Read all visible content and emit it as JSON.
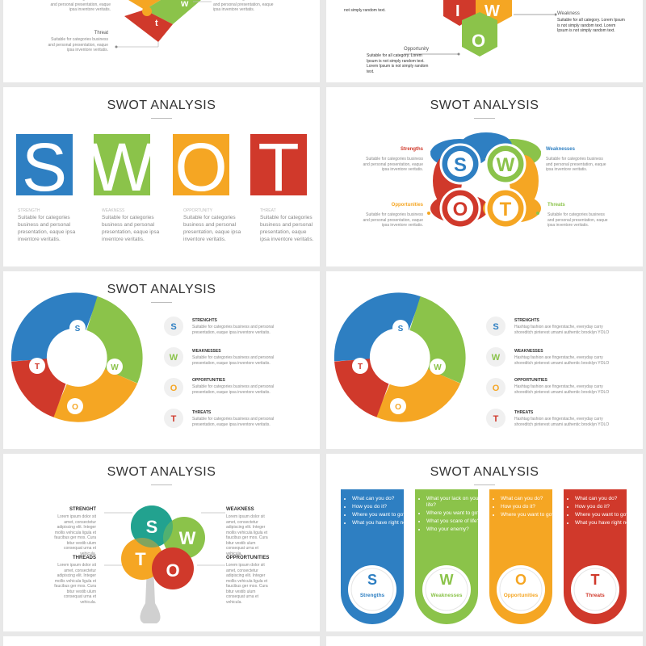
{
  "colors": {
    "s": "#2e7fc2",
    "w": "#8bc34a",
    "o": "#f5a623",
    "t": "#d0392b"
  },
  "title": "SWOT ANALYSIS",
  "top_left": {
    "strength_text": "Suitable for categories business and personal presentation, eaque ipsa inventore veritatis.",
    "weakness_text": "Suitable for categories business and personal presentation, eaque ipsa inventore veritatis.",
    "threat_label": "Threat",
    "threat_text": "Suitable for categories business and personal presentation, eaque ipsa inventore veritatis.",
    "letter_w": "w",
    "letter_t": "t"
  },
  "top_right": {
    "text1": "not simply random text.",
    "weakness_label": "Weakness",
    "weakness_text": "Suitable for all category. Lorem Ipsum is not simply random text. Lorem Ipsum is not simply random text.",
    "opportunity_label": "Opportunity",
    "opportunity_text": "Suitable for all category. Lorem Ipsum is not simply random text. Lorem Ipsum is not simply random text.",
    "letter_i": "I",
    "letter_w": "W",
    "letter_o": "O"
  },
  "blocks": {
    "letters": [
      "S",
      "W",
      "O",
      "T"
    ],
    "labels": [
      "STRENGTH",
      "WEAKNESS",
      "OPPORTUNITY",
      "THREAT"
    ],
    "text": "Suitable for categories business and personal presentation, eaque ipsa inventore veritatis."
  },
  "flower": {
    "labels": [
      "Strengths",
      "Weaknesses",
      "Opportunities",
      "Threats"
    ],
    "text": "Suitable for categories business and personal presentation, eaque ipsa inventore veritatis.",
    "letters": [
      "S",
      "W",
      "O",
      "T"
    ]
  },
  "ring_a": {
    "labels": [
      "STRENGHTS",
      "WEAKNESSES",
      "OPPORTUNITIES",
      "THREATS"
    ],
    "text": "Suitable for categories business and personal presentation, eaque ipsa inventore veritatis.",
    "letters": [
      "S",
      "W",
      "O",
      "T"
    ]
  },
  "ring_b": {
    "labels": [
      "STRENGHTS",
      "WEAKNESSES",
      "OPPORTUNITIES",
      "THREATS"
    ],
    "text": "Hashtag fashion axe fingerstache, everyday carry shoreditch pinterest umami authentic brooklyn YOLO",
    "letters": [
      "S",
      "W",
      "O",
      "T"
    ]
  },
  "tree": {
    "labels": [
      "STRENGHT",
      "WEAKNESS",
      "THREADS",
      "OPPRORTUNITIES"
    ],
    "text": "Lorem ipsum dolor sit amet, consectetur adipiscing elit. Integer mollis vehicula ligula et faucibus ger mos. Cura bitur vestib ulum consequat urna et vehicula.",
    "letters": [
      "S",
      "W",
      "T",
      "O"
    ]
  },
  "cards": {
    "items": [
      {
        "letter": "S",
        "name": "Strengths",
        "bullets": [
          "What can you do?",
          "How you do it?",
          "Where you want to go?",
          "What you have right now?"
        ]
      },
      {
        "letter": "W",
        "name": "Weaknesses",
        "bullets": [
          "What your lack on your life?",
          "Where you want to go?",
          "What you scare of life?",
          "Who your enemy?"
        ]
      },
      {
        "letter": "O",
        "name": "Opportunities",
        "bullets": [
          "What can you do?",
          "How you do it?",
          "Where you want to go?"
        ]
      },
      {
        "letter": "T",
        "name": "Threats",
        "bullets": [
          "What can you do?",
          "How you do it?",
          "Where you want to go?",
          "What you have right now?"
        ]
      }
    ]
  }
}
